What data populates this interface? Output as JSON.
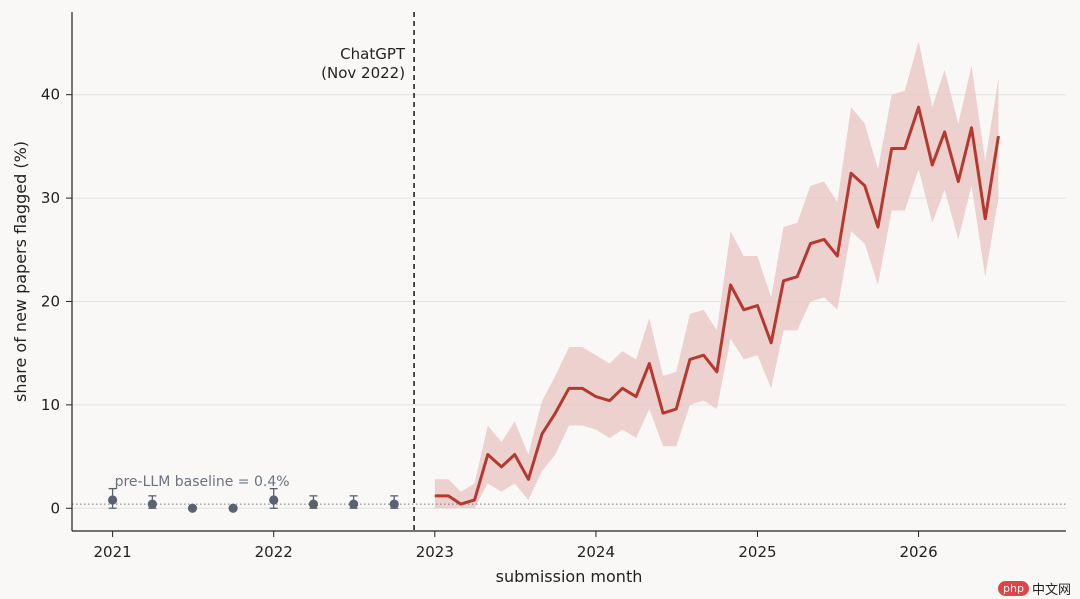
{
  "chart_data": {
    "type": "line",
    "xlabel": "submission month",
    "ylabel": "share of new papers flagged (%)",
    "xlim": [
      "2020-10-01",
      "2026-12-01"
    ],
    "ylim": [
      -2.2,
      48
    ],
    "x_ticks": [
      "2021",
      "2022",
      "2023",
      "2024",
      "2025",
      "2026"
    ],
    "y_ticks": [
      0,
      10,
      20,
      30,
      40
    ],
    "grid": "horizontal",
    "colors": {
      "line": "#b5392e",
      "band": "#e7c4c1",
      "pre_points": "#5a6270",
      "baseline": "#777777",
      "vline": "#222222"
    },
    "baseline": {
      "value": 0.4,
      "label": "pre-LLM baseline = 0.4%"
    },
    "event": {
      "date": "2022-11-15",
      "label_lines": [
        "ChatGPT",
        "(Nov 2022)"
      ]
    },
    "pre_llm_points": {
      "x": [
        "2021-01",
        "2021-04",
        "2021-07",
        "2021-10",
        "2022-01",
        "2022-04",
        "2022-07",
        "2022-10"
      ],
      "y": [
        0.8,
        0.4,
        0.0,
        0.0,
        0.8,
        0.4,
        0.4,
        0.4
      ],
      "err_low": [
        0.0,
        0.0,
        0.0,
        0.0,
        0.0,
        0.0,
        0.0,
        0.0
      ],
      "err_high": [
        1.9,
        1.2,
        0.0,
        0.0,
        1.9,
        1.2,
        1.2,
        1.2
      ]
    },
    "series": [
      {
        "x": [
          "2023-01",
          "2023-02",
          "2023-03",
          "2023-04",
          "2023-05",
          "2023-06",
          "2023-07",
          "2023-08",
          "2023-09",
          "2023-10",
          "2023-11",
          "2023-12",
          "2024-01",
          "2024-02",
          "2024-03",
          "2024-04",
          "2024-05",
          "2024-06",
          "2024-07",
          "2024-08",
          "2024-09",
          "2024-10",
          "2024-11",
          "2024-12",
          "2025-01",
          "2025-02",
          "2025-03",
          "2025-04",
          "2025-05",
          "2025-06",
          "2025-07",
          "2025-08",
          "2025-09",
          "2025-10",
          "2025-11",
          "2025-12",
          "2026-01",
          "2026-02",
          "2026-03",
          "2026-04",
          "2026-05",
          "2026-06",
          "2026-07"
        ],
        "y": [
          1.2,
          1.2,
          0.4,
          0.8,
          5.2,
          4.0,
          5.2,
          2.8,
          7.2,
          9.2,
          11.6,
          11.6,
          10.8,
          10.4,
          11.6,
          10.8,
          14.0,
          9.2,
          9.6,
          14.4,
          14.8,
          13.2,
          21.6,
          19.2,
          19.6,
          16.0,
          22.0,
          22.4,
          25.6,
          26.0,
          24.4,
          32.4,
          31.2,
          27.2,
          34.8,
          34.8,
          38.8,
          33.2,
          36.4,
          31.6,
          36.8,
          28.0,
          36.0
        ],
        "band_low": [
          0.0,
          0.0,
          0.0,
          0.0,
          2.4,
          1.6,
          2.4,
          0.8,
          3.6,
          5.2,
          8.0,
          8.0,
          7.6,
          6.8,
          7.6,
          6.8,
          9.6,
          6.0,
          6.0,
          10.0,
          10.4,
          9.6,
          16.4,
          14.4,
          14.8,
          11.6,
          17.2,
          17.2,
          20.0,
          20.4,
          19.2,
          26.8,
          25.6,
          21.6,
          28.8,
          28.8,
          32.8,
          27.6,
          30.8,
          26.0,
          31.2,
          22.4,
          30.0
        ],
        "band_high": [
          2.8,
          2.8,
          1.6,
          2.4,
          8.0,
          6.4,
          8.4,
          5.2,
          10.4,
          12.8,
          15.6,
          15.6,
          14.8,
          14.0,
          15.2,
          14.4,
          18.4,
          12.8,
          13.2,
          18.8,
          19.2,
          17.2,
          26.8,
          24.4,
          24.4,
          20.4,
          27.2,
          27.6,
          31.2,
          31.6,
          29.6,
          38.8,
          37.2,
          32.8,
          40.0,
          40.4,
          45.2,
          38.8,
          42.4,
          37.2,
          42.8,
          33.6,
          41.6
        ]
      }
    ]
  },
  "watermark": {
    "badge": "php",
    "text": "中文网"
  }
}
